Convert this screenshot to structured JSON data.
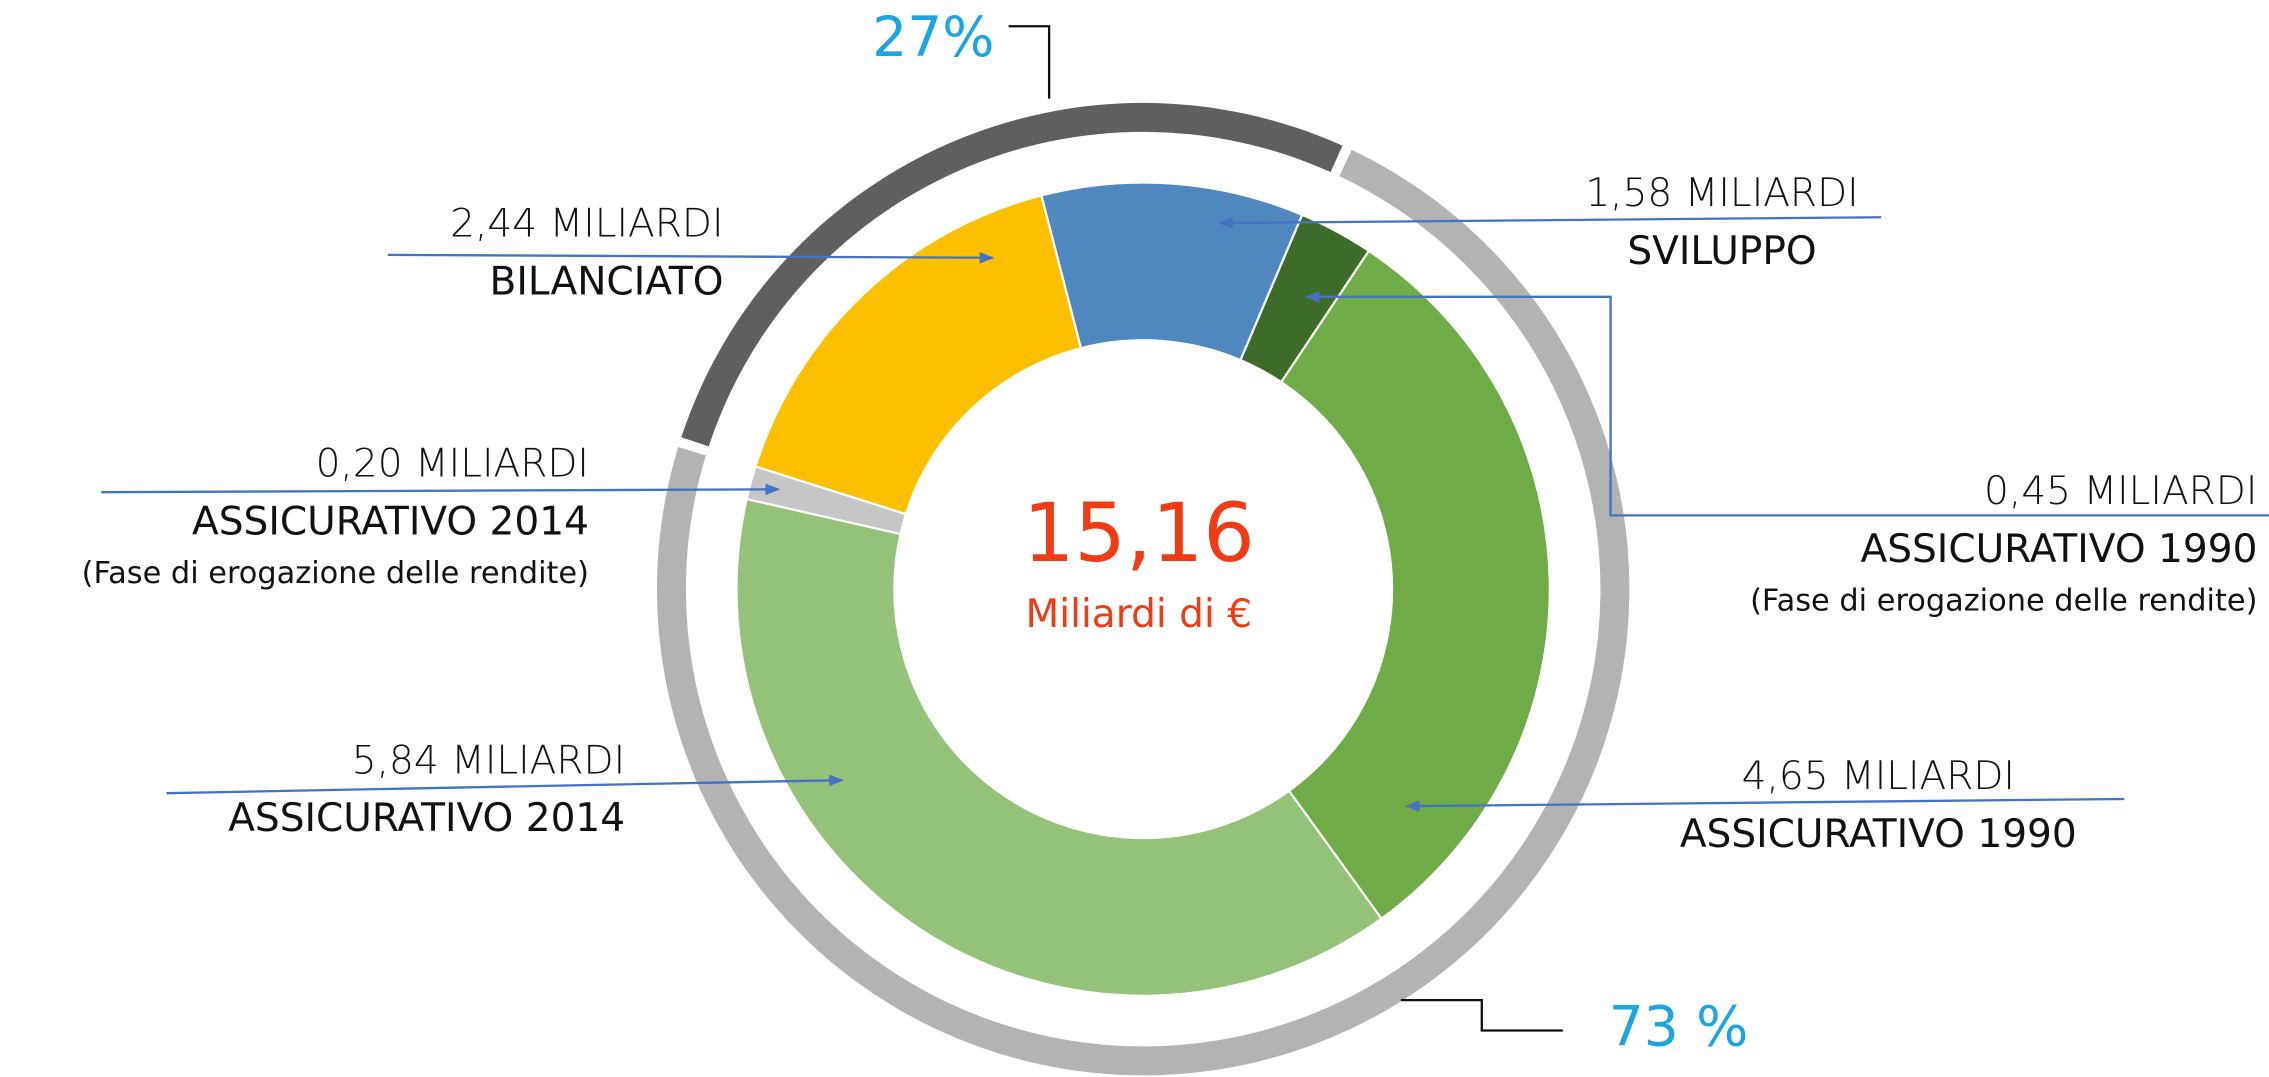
{
  "chart_data": {
    "type": "donut",
    "center_label": "15,16",
    "center_sublabel": "Miliardi di €",
    "categories": [
      "SVILUPPO",
      "ASSICURATIVO 1990",
      "ASSICURATIVO 1990",
      "ASSICURATIVO 2014",
      "ASSICURATIVO 2014",
      "BILANCIATO"
    ],
    "category_notes": [
      null,
      "(Fase di erogazione delle rendite)",
      null,
      null,
      "(Fase di erogazione delle rendite)",
      null
    ],
    "values": [
      1.58,
      0.45,
      4.65,
      5.84,
      0.2,
      2.44
    ],
    "value_labels": [
      "1,58 MILIARDI",
      "0,45 MILIARDI",
      "4,65 MILIARDI",
      "5,84 MILIARDI",
      "0,20 MILIARDI",
      "2,44 MILIARDI"
    ],
    "colors": [
      "#4f88bf",
      "#3f6b2a",
      "#6fab46",
      "#94c278",
      "#c6c6c6",
      "#fdc000"
    ],
    "outer_ring": {
      "values": [
        27,
        73
      ],
      "value_labels": [
        "27%",
        "73 %"
      ],
      "colors": [
        "#5f5f5f",
        "#b3b3b3"
      ]
    }
  }
}
